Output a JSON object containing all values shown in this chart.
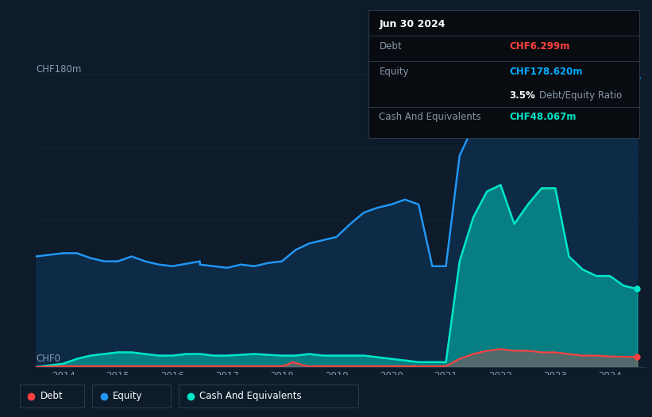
{
  "background_color": "#0d1b2a",
  "plot_bg_color": "#0d1b2a",
  "title_box": {
    "date": "Jun 30 2024",
    "debt_label": "Debt",
    "debt_value": "CHF6.299m",
    "debt_color": "#ff4040",
    "equity_label": "Equity",
    "equity_value": "CHF178.620m",
    "equity_color": "#00aaff",
    "ratio_bold": "3.5%",
    "ratio_text": " Debt/Equity Ratio",
    "cash_label": "Cash And Equivalents",
    "cash_value": "CHF48.067m",
    "cash_color": "#00e5c8"
  },
  "ylabel_top": "CHF180m",
  "ylabel_bottom": "CHF0",
  "x_ticks": [
    2014,
    2015,
    2016,
    2017,
    2018,
    2019,
    2020,
    2021,
    2022,
    2023,
    2024
  ],
  "equity_color": "#2196f3",
  "equity_fill": "#0d2540",
  "cash_color": "#00e5c8",
  "cash_fill": "#00e5c8",
  "debt_color": "#ff4040",
  "debt_fill": "#ff4040",
  "grid_color": "#162535",
  "equity_data": {
    "x": [
      2013.5,
      2014.0,
      2014.25,
      2014.5,
      2014.75,
      2015.0,
      2015.0,
      2015.25,
      2015.5,
      2015.75,
      2016.0,
      2016.0,
      2016.5,
      2016.5,
      2016.75,
      2017.0,
      2017.0,
      2017.25,
      2017.5,
      2017.75,
      2018.0,
      2018.0,
      2018.25,
      2018.5,
      2018.75,
      2019.0,
      2019.25,
      2019.5,
      2019.75,
      2020.0,
      2020.25,
      2020.5,
      2020.5,
      2020.75,
      2021.0,
      2021.0,
      2021.25,
      2021.5,
      2021.75,
      2022.0,
      2022.0,
      2022.25,
      2022.5,
      2022.75,
      2023.0,
      2023.25,
      2023.5,
      2023.75,
      2024.0,
      2024.25,
      2024.5
    ],
    "y": [
      68,
      70,
      70,
      67,
      65,
      65,
      65,
      68,
      65,
      63,
      62,
      62,
      65,
      63,
      62,
      61,
      61,
      63,
      62,
      64,
      65,
      65,
      72,
      76,
      78,
      80,
      88,
      95,
      98,
      100,
      103,
      100,
      100,
      62,
      62,
      62,
      130,
      148,
      158,
      160,
      160,
      155,
      148,
      146,
      150,
      148,
      152,
      158,
      162,
      170,
      178
    ]
  },
  "cash_data": {
    "x": [
      2013.5,
      2014.0,
      2014.25,
      2014.5,
      2014.75,
      2015.0,
      2015.25,
      2015.5,
      2015.75,
      2016.0,
      2016.25,
      2016.5,
      2016.75,
      2017.0,
      2017.5,
      2018.0,
      2018.25,
      2018.5,
      2018.75,
      2019.0,
      2019.5,
      2020.0,
      2020.5,
      2020.5,
      2020.75,
      2021.0,
      2021.0,
      2021.25,
      2021.5,
      2021.75,
      2022.0,
      2022.0,
      2022.25,
      2022.5,
      2022.75,
      2023.0,
      2023.0,
      2023.25,
      2023.5,
      2023.75,
      2024.0,
      2024.25,
      2024.5
    ],
    "y": [
      0,
      2,
      5,
      7,
      8,
      9,
      9,
      8,
      7,
      7,
      8,
      8,
      7,
      7,
      8,
      7,
      7,
      8,
      7,
      7,
      7,
      5,
      3,
      3,
      3,
      3,
      3,
      65,
      92,
      108,
      112,
      112,
      88,
      100,
      110,
      110,
      110,
      68,
      60,
      56,
      56,
      50,
      48
    ]
  },
  "debt_data": {
    "x": [
      2013.5,
      2014.0,
      2014.5,
      2015.0,
      2015.5,
      2016.0,
      2016.5,
      2017.0,
      2017.5,
      2018.0,
      2018.1,
      2018.2,
      2018.3,
      2018.4,
      2018.5,
      2019.0,
      2019.5,
      2020.0,
      2020.5,
      2020.75,
      2021.0,
      2021.0,
      2021.25,
      2021.5,
      2021.75,
      2022.0,
      2022.0,
      2022.25,
      2022.5,
      2022.75,
      2023.0,
      2023.0,
      2023.25,
      2023.5,
      2023.75,
      2024.0,
      2024.25,
      2024.5
    ],
    "y": [
      0,
      0.5,
      0.5,
      0.5,
      0.5,
      0.5,
      0.5,
      0.5,
      0.5,
      0.5,
      1.5,
      3,
      2,
      1,
      0.5,
      0.5,
      0.5,
      0.5,
      0.5,
      0.5,
      0.5,
      0.5,
      5,
      8,
      10,
      11,
      11,
      10,
      10,
      9,
      9,
      9,
      8,
      7,
      7,
      6.5,
      6.3,
      6.3
    ]
  }
}
